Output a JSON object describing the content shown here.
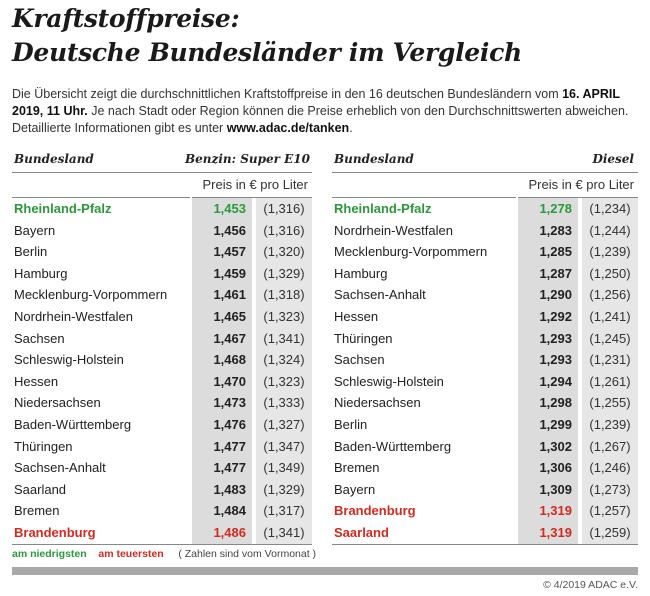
{
  "title_line1": "Kraftstoffpreise:",
  "title_line2": "Deutsche Bundesländer im Vergleich",
  "intro": {
    "t1": "Die Übersicht zeigt die durchschnittlichen Kraftstoffpreise in den 16 deutschen Bundesländern vom ",
    "date": "16. APRIL 2019, 11 Uhr.",
    "t2": " Je nach Stadt oder Region können die Preise erheblich von den Durchschnittswerten abweichen. Detaillierte Informationen gibt es unter ",
    "url": "www.adac.de/tanken",
    "t3": "."
  },
  "colors": {
    "lowest": "#2a9a3a",
    "highest": "#d42a1e"
  },
  "tables": [
    {
      "col_state": "Bundesland",
      "fuel": "Benzin:  Super E10",
      "unit": "Preis in € pro Liter",
      "rows": [
        [
          "Rheinland-Pfalz",
          "1,453",
          "(1,316)",
          "low"
        ],
        [
          "Bayern",
          "1,456",
          "(1,316)",
          ""
        ],
        [
          "Berlin",
          "1,457",
          "(1,320)",
          ""
        ],
        [
          "Hamburg",
          "1,459",
          "(1,329)",
          ""
        ],
        [
          "Mecklenburg-Vorpommern",
          "1,461",
          "(1,318)",
          ""
        ],
        [
          "Nordrhein-Westfalen",
          "1,465",
          "(1,323)",
          ""
        ],
        [
          "Sachsen",
          "1,467",
          "(1,341)",
          ""
        ],
        [
          "Schleswig-Holstein",
          "1,468",
          "(1,324)",
          ""
        ],
        [
          "Hessen",
          "1,470",
          "(1,323)",
          ""
        ],
        [
          "Niedersachsen",
          "1,473",
          "(1,333)",
          ""
        ],
        [
          "Baden-Württemberg",
          "1,476",
          "(1,327)",
          ""
        ],
        [
          "Thüringen",
          "1,477",
          "(1,347)",
          ""
        ],
        [
          "Sachsen-Anhalt",
          "1,477",
          "(1,349)",
          ""
        ],
        [
          "Saarland",
          "1,483",
          "(1,329)",
          ""
        ],
        [
          "Bremen",
          "1,484",
          "(1,317)",
          ""
        ],
        [
          "Brandenburg",
          "1,486",
          "(1,341)",
          "high"
        ]
      ]
    },
    {
      "col_state": "Bundesland",
      "fuel": "Diesel",
      "unit": "Preis in € pro Liter",
      "rows": [
        [
          "Rheinland-Pfalz",
          "1,278",
          "(1,234)",
          "low"
        ],
        [
          "Nordrhein-Westfalen",
          "1,283",
          "(1,244)",
          ""
        ],
        [
          "Mecklenburg-Vorpommern",
          "1,285",
          "(1,239)",
          ""
        ],
        [
          "Hamburg",
          "1,287",
          "(1,250)",
          ""
        ],
        [
          "Sachsen-Anhalt",
          "1,290",
          "(1,256)",
          ""
        ],
        [
          "Hessen",
          "1,292",
          "(1,241)",
          ""
        ],
        [
          "Thüringen",
          "1,293",
          "(1,245)",
          ""
        ],
        [
          "Sachsen",
          "1,293",
          "(1,231)",
          ""
        ],
        [
          "Schleswig-Holstein",
          "1,294",
          "(1,261)",
          ""
        ],
        [
          "Niedersachsen",
          "1,298",
          "(1,255)",
          ""
        ],
        [
          "Berlin",
          "1,299",
          "(1,239)",
          ""
        ],
        [
          "Baden-Württemberg",
          "1,302",
          "(1,267)",
          ""
        ],
        [
          "Bremen",
          "1,306",
          "(1,246)",
          ""
        ],
        [
          "Bayern",
          "1,309",
          "(1,273)",
          ""
        ],
        [
          "Brandenburg",
          "1,319",
          "(1,257)",
          "high"
        ],
        [
          "Saarland",
          "1,319",
          "(1,259)",
          "high"
        ]
      ]
    }
  ],
  "legend": {
    "low": "am niedrigsten",
    "high": "am teuersten",
    "note": "( Zahlen sind vom Vormonat )"
  },
  "copyright": "© 4/2019 ADAC e.V."
}
